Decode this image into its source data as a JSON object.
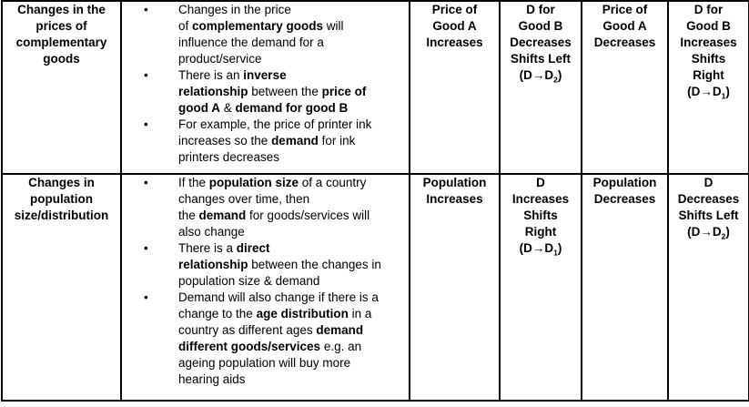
{
  "page": {
    "background_color": "#ffffff",
    "border_color": "#000000",
    "text_color": "#000000"
  },
  "table": {
    "rows": [
      {
        "factor": "Changes in the\nprices of\ncomplementary\ngoods",
        "explanation_bullets": [
          [
            {
              "t": "Changes in the price\nof ",
              "b": false
            },
            {
              "t": "complementary goods",
              "b": true
            },
            {
              "t": " will\ninfluence the demand for a\nproduct/service",
              "b": false
            }
          ],
          [
            {
              "t": "There is an ",
              "b": false
            },
            {
              "t": "inverse\nrelationship",
              "b": true
            },
            {
              "t": " between the ",
              "b": false
            },
            {
              "t": "price of\ngood A",
              "b": true
            },
            {
              "t": " & ",
              "b": false
            },
            {
              "t": "demand for good B",
              "b": true
            }
          ],
          [
            {
              "t": "For example, the price of printer ink\nincreases so the ",
              "b": false
            },
            {
              "t": "demand",
              "b": true
            },
            {
              "t": " for ink\nprinters decreases",
              "b": false
            }
          ]
        ],
        "scenario_1": "Price of\nGood A\nIncreases",
        "effect_1": [
          {
            "t": "D for\nGood B\nDecreases\nShifts Left\n(D→D",
            "b": true
          },
          {
            "t": "2",
            "b": true,
            "sub": true
          },
          {
            "t": ")",
            "b": true
          }
        ],
        "scenario_2": "Price of\nGood A\nDecreases",
        "effect_2": [
          {
            "t": "D for\nGood B\nIncreases\nShifts\nRight\n(D→D",
            "b": true
          },
          {
            "t": "1",
            "b": true,
            "sub": true
          },
          {
            "t": ")",
            "b": true
          }
        ]
      },
      {
        "factor": "Changes in\npopulation\nsize/distribution",
        "explanation_bullets": [
          [
            {
              "t": "If the ",
              "b": false
            },
            {
              "t": "population size",
              "b": true
            },
            {
              "t": " of a country\nchanges over time, then\nthe ",
              "b": false
            },
            {
              "t": "demand",
              "b": true
            },
            {
              "t": " for goods/services will\nalso change",
              "b": false
            }
          ],
          [
            {
              "t": "There is a ",
              "b": false
            },
            {
              "t": "direct\nrelationship",
              "b": true
            },
            {
              "t": " between the changes in\npopulation size & demand",
              "b": false
            }
          ],
          [
            {
              "t": "Demand will also change if there is a\nchange to the ",
              "b": false
            },
            {
              "t": "age distribution",
              "b": true
            },
            {
              "t": " in a\ncountry as different ages ",
              "b": false
            },
            {
              "t": "demand\ndifferent goods/services",
              "b": true
            },
            {
              "t": " e.g. an\nageing population will buy more\nhearing aids",
              "b": false
            }
          ]
        ],
        "scenario_1": "Population\nIncreases",
        "effect_1": [
          {
            "t": "D\nIncreases\nShifts\nRight\n(D→D",
            "b": true
          },
          {
            "t": "1",
            "b": true,
            "sub": true
          },
          {
            "t": ")",
            "b": true
          }
        ],
        "scenario_2": "Population\nDecreases",
        "effect_2": [
          {
            "t": "D\nDecreases\nShifts Left\n(D→D",
            "b": true
          },
          {
            "t": "2",
            "b": true,
            "sub": true
          },
          {
            "t": ")",
            "b": true
          }
        ]
      }
    ]
  }
}
